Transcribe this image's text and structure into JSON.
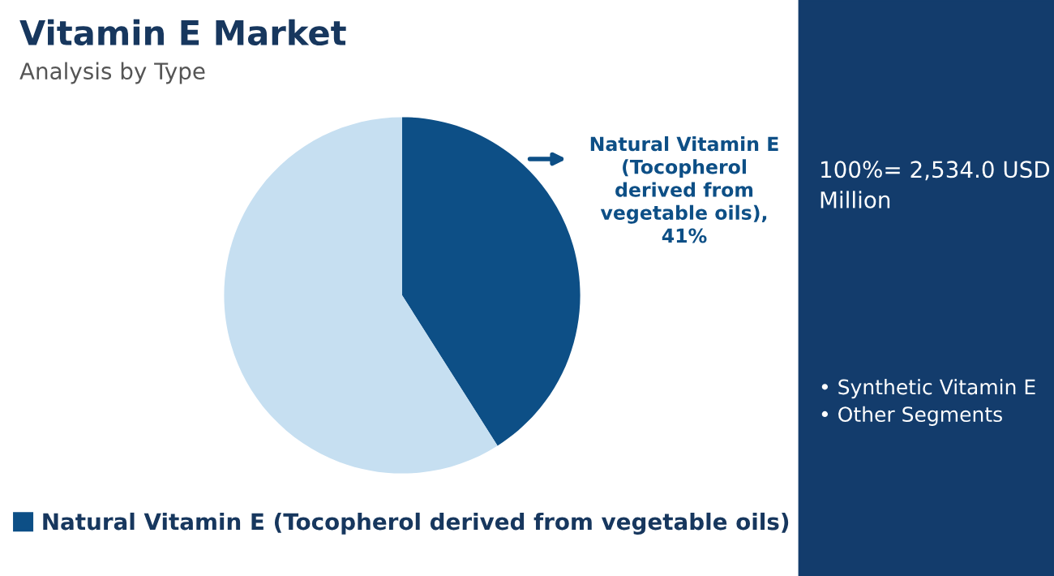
{
  "chart_data": {
    "type": "pie",
    "title": "Vitamin E Market",
    "subtitle": "Analysis by Type",
    "categories": [
      "Natural Vitamin E (Tocopherol derived from vegetable oils)",
      null
    ],
    "values": [
      41,
      59
    ],
    "colors": [
      "#0d4f86",
      "#c6dff1"
    ],
    "value_labels": [
      "Natural Vitamin E\n(Tocopherol\nderived from\nvegetable oils),\n41%",
      null
    ],
    "legend": "bottom",
    "annotations": [
      "100%= 2,534.0 USD\nMillion",
      "• Synthetic Vitamin E\n• Other Segments"
    ]
  }
}
